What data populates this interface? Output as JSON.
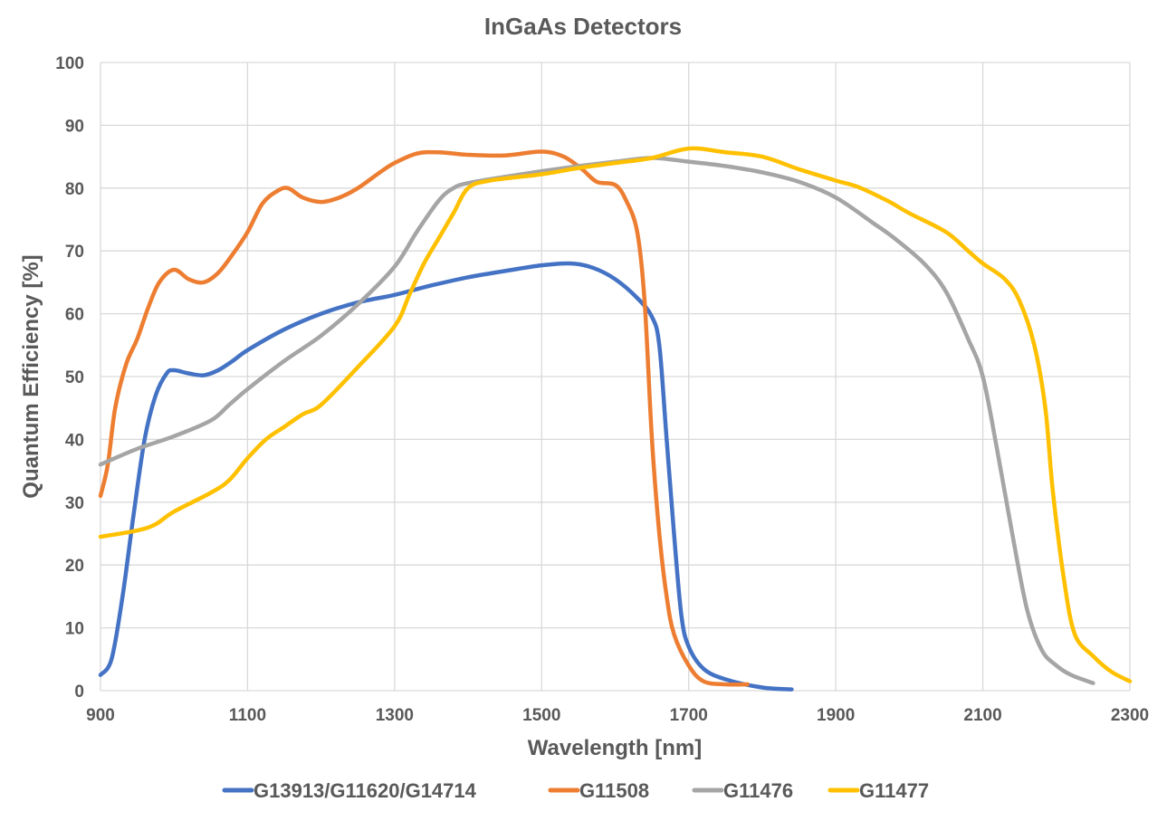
{
  "chart_data": {
    "type": "line",
    "title": "InGaAs Detectors",
    "xlabel": "Wavelength [nm]",
    "ylabel": "Quantum Efficiency [%]",
    "xlim": [
      900,
      2300
    ],
    "ylim": [
      0,
      100
    ],
    "xticks": [
      900,
      1100,
      1300,
      1500,
      1700,
      1900,
      2100,
      2300
    ],
    "yticks": [
      0,
      10,
      20,
      30,
      40,
      50,
      60,
      70,
      80,
      90,
      100
    ],
    "grid": true,
    "legend_position": "bottom",
    "series": [
      {
        "name": "G13913/G11620/G14714",
        "color": "#4472C4",
        "points": [
          [
            900,
            2.5
          ],
          [
            915,
            5
          ],
          [
            930,
            15
          ],
          [
            945,
            28
          ],
          [
            960,
            40
          ],
          [
            975,
            47
          ],
          [
            990,
            50.5
          ],
          [
            1000,
            51
          ],
          [
            1020,
            50.5
          ],
          [
            1040,
            50.2
          ],
          [
            1060,
            51
          ],
          [
            1080,
            52.5
          ],
          [
            1100,
            54.2
          ],
          [
            1150,
            57.5
          ],
          [
            1200,
            60
          ],
          [
            1250,
            61.8
          ],
          [
            1300,
            63
          ],
          [
            1350,
            64.5
          ],
          [
            1400,
            65.8
          ],
          [
            1450,
            66.8
          ],
          [
            1500,
            67.7
          ],
          [
            1540,
            68
          ],
          [
            1570,
            67.3
          ],
          [
            1600,
            65.5
          ],
          [
            1630,
            62.5
          ],
          [
            1650,
            59.5
          ],
          [
            1660,
            55
          ],
          [
            1670,
            40
          ],
          [
            1680,
            25
          ],
          [
            1690,
            12
          ],
          [
            1700,
            7
          ],
          [
            1720,
            3.5
          ],
          [
            1750,
            1.8
          ],
          [
            1800,
            0.5
          ],
          [
            1840,
            0.2
          ]
        ]
      },
      {
        "name": "G11508",
        "color": "#ED7D31",
        "points": [
          [
            900,
            31
          ],
          [
            910,
            36
          ],
          [
            920,
            45
          ],
          [
            935,
            52
          ],
          [
            950,
            56
          ],
          [
            965,
            61
          ],
          [
            980,
            65
          ],
          [
            1000,
            67
          ],
          [
            1020,
            65.5
          ],
          [
            1040,
            65
          ],
          [
            1060,
            66.5
          ],
          [
            1080,
            69.5
          ],
          [
            1100,
            73
          ],
          [
            1120,
            77.5
          ],
          [
            1140,
            79.5
          ],
          [
            1155,
            80
          ],
          [
            1175,
            78.5
          ],
          [
            1200,
            77.8
          ],
          [
            1225,
            78.5
          ],
          [
            1250,
            80
          ],
          [
            1280,
            82.5
          ],
          [
            1300,
            84
          ],
          [
            1330,
            85.5
          ],
          [
            1360,
            85.7
          ],
          [
            1400,
            85.3
          ],
          [
            1450,
            85.2
          ],
          [
            1500,
            85.8
          ],
          [
            1530,
            85
          ],
          [
            1555,
            83
          ],
          [
            1575,
            81
          ],
          [
            1600,
            80.5
          ],
          [
            1615,
            78
          ],
          [
            1630,
            73
          ],
          [
            1640,
            62
          ],
          [
            1650,
            40
          ],
          [
            1660,
            25
          ],
          [
            1670,
            15
          ],
          [
            1680,
            9
          ],
          [
            1700,
            4
          ],
          [
            1720,
            1.5
          ],
          [
            1750,
            1
          ],
          [
            1780,
            1
          ]
        ]
      },
      {
        "name": "G11476",
        "color": "#A5A5A5",
        "points": [
          [
            900,
            36
          ],
          [
            950,
            38.5
          ],
          [
            1000,
            40.5
          ],
          [
            1050,
            43
          ],
          [
            1075,
            45.5
          ],
          [
            1100,
            48
          ],
          [
            1150,
            52.5
          ],
          [
            1200,
            56.5
          ],
          [
            1250,
            61.5
          ],
          [
            1300,
            67.5
          ],
          [
            1330,
            73
          ],
          [
            1360,
            78
          ],
          [
            1380,
            80
          ],
          [
            1400,
            80.8
          ],
          [
            1450,
            81.8
          ],
          [
            1500,
            82.7
          ],
          [
            1550,
            83.5
          ],
          [
            1600,
            84.2
          ],
          [
            1650,
            84.8
          ],
          [
            1700,
            84.2
          ],
          [
            1750,
            83.5
          ],
          [
            1800,
            82.5
          ],
          [
            1850,
            81
          ],
          [
            1900,
            78.5
          ],
          [
            1950,
            74.5
          ],
          [
            1980,
            72
          ],
          [
            2020,
            68
          ],
          [
            2050,
            63.5
          ],
          [
            2080,
            56
          ],
          [
            2100,
            50
          ],
          [
            2120,
            38
          ],
          [
            2140,
            25
          ],
          [
            2160,
            13
          ],
          [
            2180,
            6.5
          ],
          [
            2200,
            4
          ],
          [
            2220,
            2.5
          ],
          [
            2250,
            1.2
          ]
        ]
      },
      {
        "name": "G11477",
        "color": "#FFC000",
        "points": [
          [
            900,
            24.5
          ],
          [
            950,
            25.5
          ],
          [
            975,
            26.5
          ],
          [
            1000,
            28.5
          ],
          [
            1050,
            31.5
          ],
          [
            1075,
            33.5
          ],
          [
            1100,
            37
          ],
          [
            1125,
            40
          ],
          [
            1150,
            42
          ],
          [
            1175,
            44
          ],
          [
            1200,
            45.5
          ],
          [
            1250,
            51.5
          ],
          [
            1300,
            58
          ],
          [
            1320,
            63
          ],
          [
            1340,
            68
          ],
          [
            1360,
            72
          ],
          [
            1380,
            76
          ],
          [
            1400,
            80
          ],
          [
            1430,
            81.2
          ],
          [
            1500,
            82.2
          ],
          [
            1550,
            83.2
          ],
          [
            1600,
            84
          ],
          [
            1650,
            84.8
          ],
          [
            1700,
            86.3
          ],
          [
            1750,
            85.7
          ],
          [
            1800,
            85
          ],
          [
            1850,
            83
          ],
          [
            1900,
            81.2
          ],
          [
            1930,
            80.2
          ],
          [
            1970,
            78
          ],
          [
            2000,
            76
          ],
          [
            2050,
            73
          ],
          [
            2080,
            70
          ],
          [
            2100,
            68
          ],
          [
            2130,
            65.5
          ],
          [
            2150,
            62
          ],
          [
            2170,
            55
          ],
          [
            2185,
            45
          ],
          [
            2195,
            32
          ],
          [
            2210,
            18
          ],
          [
            2225,
            9
          ],
          [
            2250,
            5.5
          ],
          [
            2275,
            3
          ],
          [
            2300,
            1.5
          ]
        ]
      }
    ]
  }
}
